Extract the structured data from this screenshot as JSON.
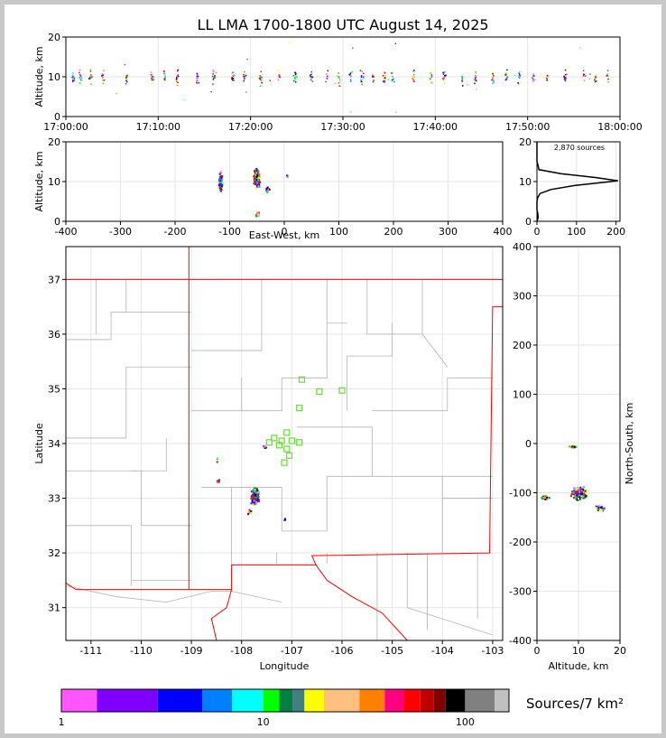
{
  "chart_data": [
    {
      "id": "time_height",
      "type": "scatter",
      "title": "LL LMA 1700-1800 UTC August 14, 2025",
      "xlabel": "",
      "ylabel": "Altitude, km",
      "x_ticks": [
        "17:00:00",
        "17:10:00",
        "17:20:00",
        "17:30:00",
        "17:40:00",
        "17:50:00",
        "18:00:00"
      ],
      "xlim_minutes": [
        0,
        60
      ],
      "ylim": [
        0,
        20
      ],
      "y_ticks": [
        0,
        10,
        20
      ],
      "grid": true,
      "burst_minutes": [
        0.7,
        1.5,
        2.6,
        3.9,
        6.5,
        9.3,
        10.6,
        12.0,
        14.2,
        16.0,
        18.0,
        19.3,
        21.0,
        23.0,
        24.8,
        26.5,
        28.2,
        29.5,
        30.8,
        32.0,
        33.2,
        34.4,
        35.3,
        37.6,
        39.5,
        40.9,
        42.8,
        44.3,
        46.1,
        47.6,
        49.0,
        50.5,
        52.0,
        54.0,
        56.0,
        57.3,
        58.6
      ]
    },
    {
      "id": "ew_height",
      "type": "scatter",
      "xlabel": "East-West, km",
      "ylabel": "Altitude, km",
      "xlim": [
        -400,
        400
      ],
      "x_ticks": [
        -400,
        -300,
        -200,
        -100,
        0,
        100,
        200,
        300,
        400
      ],
      "ylim": [
        0,
        20
      ],
      "y_ticks": [
        0,
        10,
        20
      ],
      "grid": true,
      "clusters": [
        {
          "x": -118,
          "y": 10,
          "spread_x": 4,
          "spread_y": 3,
          "n": 70
        },
        {
          "x": -52,
          "y": 11,
          "spread_x": 7,
          "spread_y": 3,
          "n": 230
        },
        {
          "x": -32,
          "y": 8,
          "spread_x": 4,
          "spread_y": 1,
          "n": 25
        },
        {
          "x": -50,
          "y": 2,
          "spread_x": 4,
          "spread_y": 1,
          "n": 20
        },
        {
          "x": 4,
          "y": 11.5,
          "spread_x": 1,
          "spread_y": 0.5,
          "n": 6
        }
      ]
    },
    {
      "id": "histogram",
      "type": "line",
      "annotation": "2,870 sources",
      "xlim": [
        0,
        210
      ],
      "x_ticks": [
        0,
        100,
        200
      ],
      "ylim": [
        0,
        20
      ],
      "y_ticks": [
        0,
        10,
        20
      ],
      "grid": true,
      "points": [
        [
          0,
          0
        ],
        [
          3,
          1
        ],
        [
          2,
          2
        ],
        [
          0,
          3
        ],
        [
          0,
          5
        ],
        [
          2,
          6
        ],
        [
          8,
          7
        ],
        [
          35,
          8
        ],
        [
          95,
          9
        ],
        [
          205,
          10.2
        ],
        [
          150,
          11
        ],
        [
          60,
          12
        ],
        [
          5,
          13
        ],
        [
          3,
          14
        ],
        [
          0,
          15
        ],
        [
          0,
          20
        ]
      ]
    },
    {
      "id": "plan_view",
      "type": "scatter",
      "xlabel": "Longitude",
      "ylabel": "Latitude",
      "xlim": [
        -111.5,
        -102.8
      ],
      "x_ticks": [
        -111,
        -110,
        -109,
        -108,
        -107,
        -106,
        -105,
        -104,
        -103
      ],
      "ylim": [
        30.4,
        37.6
      ],
      "y_ticks": [
        31,
        32,
        33,
        34,
        35,
        36,
        37
      ],
      "grid": true,
      "stations": [
        [
          -106.8,
          35.17
        ],
        [
          -106.45,
          34.95
        ],
        [
          -106.0,
          34.97
        ],
        [
          -106.85,
          34.65
        ],
        [
          -107.1,
          34.2
        ],
        [
          -107.2,
          34.05
        ],
        [
          -107.0,
          34.05
        ],
        [
          -107.35,
          34.1
        ],
        [
          -107.45,
          34.02
        ],
        [
          -107.25,
          33.97
        ],
        [
          -107.1,
          33.9
        ],
        [
          -107.05,
          33.78
        ],
        [
          -107.15,
          33.65
        ],
        [
          -106.85,
          34.02
        ]
      ],
      "clusters": [
        {
          "lon": -107.75,
          "lat": 33.05,
          "spread_lon": 0.1,
          "spread_lat": 0.18,
          "n": 260
        },
        {
          "lon": -108.48,
          "lat": 33.32,
          "spread_lon": 0.04,
          "spread_lat": 0.04,
          "n": 25
        },
        {
          "lon": -107.15,
          "lat": 32.62,
          "spread_lon": 0.02,
          "spread_lat": 0.02,
          "n": 4
        },
        {
          "lon": -107.55,
          "lat": 33.95,
          "spread_lon": 0.06,
          "spread_lat": 0.03,
          "n": 8
        },
        {
          "lon": -108.5,
          "lat": 33.7,
          "spread_lon": 0.02,
          "spread_lat": 0.1,
          "n": 4
        },
        {
          "lon": -107.85,
          "lat": 32.75,
          "spread_lon": 0.06,
          "spread_lat": 0.06,
          "n": 10
        }
      ]
    },
    {
      "id": "height_ns",
      "type": "scatter",
      "xlabel": "Altitude, km",
      "ylabel": "North-South, km",
      "xlim": [
        0,
        20
      ],
      "x_ticks": [
        0,
        10,
        20
      ],
      "ylim": [
        -400,
        400
      ],
      "y_ticks": [
        -400,
        -300,
        -200,
        -100,
        0,
        100,
        200,
        300,
        400
      ],
      "grid": true,
      "clusters": [
        {
          "x": 10,
          "y": -100,
          "spread_x": 2.2,
          "spread_y": 15,
          "n": 280
        },
        {
          "x": 8.5,
          "y": -5,
          "spread_x": 1.5,
          "spread_y": 2,
          "n": 20
        },
        {
          "x": 15,
          "y": -130,
          "spread_x": 2,
          "spread_y": 8,
          "n": 25
        },
        {
          "x": 2,
          "y": -108,
          "spread_x": 1.5,
          "spread_y": 6,
          "n": 20
        }
      ]
    },
    {
      "id": "colorbar",
      "type": "heatmap",
      "label": "Sources/7 km²",
      "scale": "log",
      "range": [
        1,
        165
      ],
      "tick_labels": [
        "1",
        "10",
        "100"
      ],
      "tick_values": [
        1,
        10,
        100
      ],
      "colors": [
        "#ff55ff",
        "#8000ff",
        "#0000ff",
        "#0080ff",
        "#00ffff",
        "#00ff00",
        "#008040",
        "#408080",
        "#ffff00",
        "#ffc080",
        "#ff8000",
        "#ff0080",
        "#ff0000",
        "#c00000",
        "#800000",
        "#000000",
        "#808080",
        "#c0c0c0",
        "#ffffff"
      ],
      "boundaries": [
        1,
        1.5,
        3,
        5,
        7,
        10,
        12,
        14,
        16,
        20,
        30,
        40,
        50,
        60,
        70,
        80,
        100,
        140,
        165
      ]
    }
  ]
}
